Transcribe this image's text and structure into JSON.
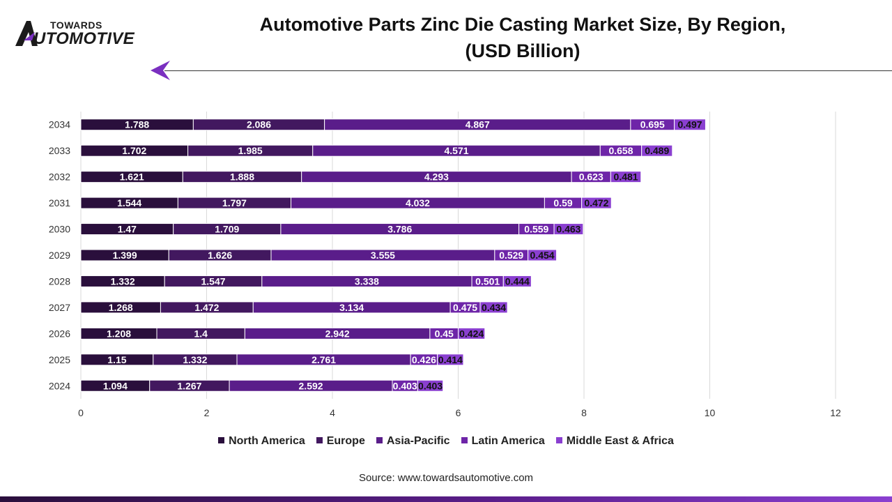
{
  "brand": {
    "line1": "TOWARDS",
    "line2": "UTOMOTIVE",
    "logo_icon": "automotive-a-logo-icon"
  },
  "header": {
    "title_line1": "Automotive Parts Zinc Die Casting Market Size, By Region,",
    "title_line2": "(USD Billion)"
  },
  "colors": {
    "North America": "#2a0f3c",
    "Europe": "#42185f",
    "Asia-Pacific": "#5a1d8a",
    "Latin America": "#6e25a8",
    "Middle East & Africa": "#8a3fd0",
    "accent": "#7a2fc0"
  },
  "chart_data": {
    "type": "bar",
    "orientation": "horizontal",
    "stacked": true,
    "categories": [
      "2024",
      "2025",
      "2026",
      "2027",
      "2028",
      "2029",
      "2030",
      "2031",
      "2032",
      "2033",
      "2034"
    ],
    "series": [
      {
        "name": "North America",
        "values": [
          1.094,
          1.15,
          1.208,
          1.268,
          1.332,
          1.399,
          1.47,
          1.544,
          1.621,
          1.702,
          1.788
        ]
      },
      {
        "name": "Europe",
        "values": [
          1.267,
          1.332,
          1.4,
          1.472,
          1.547,
          1.626,
          1.709,
          1.797,
          1.888,
          1.985,
          2.086
        ]
      },
      {
        "name": "Asia-Pacific",
        "values": [
          2.592,
          2.761,
          2.942,
          3.134,
          3.338,
          3.555,
          3.786,
          4.032,
          4.293,
          4.571,
          4.867
        ]
      },
      {
        "name": "Latin America",
        "values": [
          0.403,
          0.426,
          0.45,
          0.475,
          0.501,
          0.529,
          0.559,
          0.59,
          0.623,
          0.658,
          0.695
        ]
      },
      {
        "name": "Middle East & Africa",
        "values": [
          0.403,
          0.414,
          0.424,
          0.434,
          0.444,
          0.454,
          0.463,
          0.472,
          0.481,
          0.489,
          0.497
        ]
      }
    ],
    "xlim": [
      0,
      12
    ],
    "xticks": [
      0,
      2,
      4,
      6,
      8,
      10,
      12
    ],
    "grid": true,
    "legend": "bottom",
    "data_labels": true
  },
  "footer": {
    "source": "Source: www.towardsautomotive.com"
  }
}
